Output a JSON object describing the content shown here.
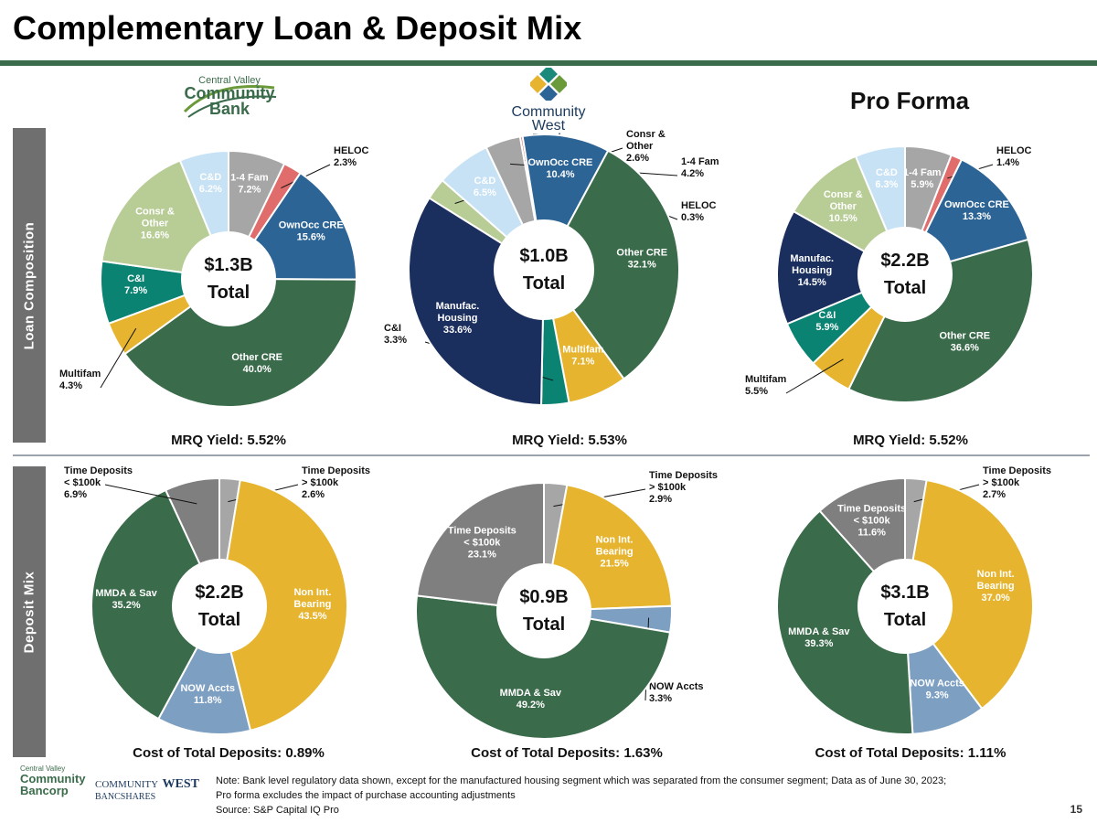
{
  "header": {
    "title": "Complementary Loan & Deposit Mix"
  },
  "side_labels": {
    "loan": "Loan Composition",
    "deposit": "Deposit Mix"
  },
  "pro_forma_label": "Pro Forma",
  "logos": {
    "cvcb": {
      "line1": "Central Valley",
      "line2": "Community",
      "line3": "Bank"
    },
    "cwb": {
      "line1": "Community",
      "line2": "West",
      "line3": "Bank"
    },
    "footer_cvcb": {
      "line1": "Central Valley",
      "line2": "Community",
      "line3": "Bancorp"
    },
    "footer_cw": {
      "line1": "COMMUNITY",
      "line2": "WEST",
      "line3": "BANCSHARES"
    }
  },
  "captions": {
    "loan": [
      "MRQ Yield: 5.52%",
      "MRQ Yield: 5.53%",
      "MRQ Yield: 5.52%"
    ],
    "deposit": [
      "Cost of Total Deposits: 0.89%",
      "Cost of Total Deposits: 1.63%",
      "Cost of Total Deposits: 1.11%"
    ]
  },
  "footer": {
    "note_line1": "Note: Bank level regulatory data shown, except for the manufactured housing segment which was separated from the consumer segment;  Data as of June 30, 2023;",
    "note_line2": "Pro forma excludes the impact of purchase accounting adjustments",
    "source": "Source: S&P Capital IQ Pro",
    "page": "15"
  },
  "colors": {
    "gray": "#a6a6a6",
    "salmon": "#e06c6c",
    "blue": "#2d6496",
    "green": "#3a6b4a",
    "gold": "#e6b42e",
    "teal": "#0b8373",
    "olive": "#b8cc96",
    "light_blue": "#c7e2f5",
    "navy": "#1b2f5e",
    "dark_gray": "#7f7f7f",
    "steel": "#7d9fc2",
    "rule": "#3a6b4a"
  },
  "chart_data": [
    {
      "type": "pie",
      "group": "loan",
      "bank": "Central Valley Community Bank",
      "center_amount": "$1.3B",
      "center_label": "Total",
      "slices": [
        {
          "label": "1-4 Fam",
          "value": 7.2,
          "color": "#a6a6a6",
          "display": "inside",
          "text_color": "#ffffff"
        },
        {
          "label": "HELOC",
          "value": 2.3,
          "color": "#e06c6c",
          "display": "callout",
          "text_color": "#111111"
        },
        {
          "label": "OwnOcc CRE",
          "value": 15.6,
          "color": "#2d6496",
          "display": "inside",
          "text_color": "#ffffff"
        },
        {
          "label": "Other CRE",
          "value": 40.0,
          "color": "#3a6b4a",
          "display": "inside",
          "text_color": "#ffffff"
        },
        {
          "label": "Multifam",
          "value": 4.3,
          "color": "#e6b42e",
          "display": "callout",
          "text_color": "#111111"
        },
        {
          "label": "C&I",
          "value": 7.9,
          "color": "#0b8373",
          "display": "inside",
          "text_color": "#ffffff"
        },
        {
          "label": "Consr & Other",
          "value": 16.6,
          "color": "#b8cc96",
          "display": "inside",
          "text_color": "#ffffff"
        },
        {
          "label": "C&D",
          "value": 6.2,
          "color": "#c7e2f5",
          "display": "inside",
          "text_color": "#ffffff"
        }
      ]
    },
    {
      "type": "pie",
      "group": "loan",
      "bank": "Community West Bank",
      "center_amount": "$1.0B",
      "center_label": "Total",
      "slices": [
        {
          "label": "Consr & Other",
          "value": 2.6,
          "color": "#b8cc96",
          "display": "callout",
          "text_color": "#111111"
        },
        {
          "label": "C&D",
          "value": 6.5,
          "color": "#c7e2f5",
          "display": "inside",
          "text_color": "#ffffff"
        },
        {
          "label": "1-4 Fam",
          "value": 4.2,
          "color": "#a6a6a6",
          "display": "callout",
          "text_color": "#111111"
        },
        {
          "label": "HELOC",
          "value": 0.3,
          "color": "#e06c6c",
          "display": "callout",
          "text_color": "#111111"
        },
        {
          "label": "OwnOcc CRE",
          "value": 10.4,
          "color": "#2d6496",
          "display": "inside",
          "text_color": "#ffffff"
        },
        {
          "label": "Other CRE",
          "value": 32.1,
          "color": "#3a6b4a",
          "display": "inside",
          "text_color": "#ffffff"
        },
        {
          "label": "Multifam",
          "value": 7.1,
          "color": "#e6b42e",
          "display": "inside",
          "text_color": "#ffffff"
        },
        {
          "label": "C&I",
          "value": 3.3,
          "color": "#0b8373",
          "display": "callout",
          "text_color": "#111111"
        },
        {
          "label": "Manufac. Housing",
          "value": 33.6,
          "color": "#1b2f5e",
          "display": "inside",
          "text_color": "#ffffff"
        }
      ]
    },
    {
      "type": "pie",
      "group": "loan",
      "bank": "Pro Forma",
      "center_amount": "$2.2B",
      "center_label": "Total",
      "slices": [
        {
          "label": "1-4 Fam",
          "value": 5.9,
          "color": "#a6a6a6",
          "display": "inside",
          "text_color": "#ffffff"
        },
        {
          "label": "HELOC",
          "value": 1.4,
          "color": "#e06c6c",
          "display": "callout",
          "text_color": "#111111"
        },
        {
          "label": "OwnOcc CRE",
          "value": 13.3,
          "color": "#2d6496",
          "display": "inside",
          "text_color": "#ffffff"
        },
        {
          "label": "Other CRE",
          "value": 36.6,
          "color": "#3a6b4a",
          "display": "inside",
          "text_color": "#ffffff"
        },
        {
          "label": "Multifam",
          "value": 5.5,
          "color": "#e6b42e",
          "display": "callout",
          "text_color": "#111111"
        },
        {
          "label": "C&I",
          "value": 5.9,
          "color": "#0b8373",
          "display": "inside",
          "text_color": "#ffffff"
        },
        {
          "label": "Manufac. Housing",
          "value": 14.5,
          "color": "#1b2f5e",
          "display": "inside",
          "text_color": "#ffffff"
        },
        {
          "label": "Consr & Other",
          "value": 10.5,
          "color": "#b8cc96",
          "display": "inside",
          "text_color": "#ffffff"
        },
        {
          "label": "C&D",
          "value": 6.3,
          "color": "#c7e2f5",
          "display": "inside",
          "text_color": "#ffffff"
        }
      ]
    },
    {
      "type": "pie",
      "group": "deposit",
      "bank": "Central Valley Community Bank",
      "center_amount": "$2.2B",
      "center_label": "Total",
      "slices": [
        {
          "label": "Time Deposits > $100k",
          "value": 2.6,
          "color": "#a6a6a6",
          "display": "callout",
          "text_color": "#111111"
        },
        {
          "label": "Non Int. Bearing",
          "value": 43.5,
          "color": "#e6b42e",
          "display": "inside",
          "text_color": "#ffffff"
        },
        {
          "label": "NOW Accts",
          "value": 11.8,
          "color": "#7d9fc2",
          "display": "inside",
          "text_color": "#ffffff"
        },
        {
          "label": "MMDA & Sav",
          "value": 35.2,
          "color": "#3a6b4a",
          "display": "inside",
          "text_color": "#ffffff"
        },
        {
          "label": "Time Deposits < $100k",
          "value": 6.9,
          "color": "#7f7f7f",
          "display": "callout",
          "text_color": "#111111"
        }
      ]
    },
    {
      "type": "pie",
      "group": "deposit",
      "bank": "Community West Bank",
      "center_amount": "$0.9B",
      "center_label": "Total",
      "slices": [
        {
          "label": "Time Deposits > $100k",
          "value": 2.9,
          "color": "#a6a6a6",
          "display": "callout",
          "text_color": "#111111"
        },
        {
          "label": "Non Int. Bearing",
          "value": 21.5,
          "color": "#e6b42e",
          "display": "inside",
          "text_color": "#ffffff"
        },
        {
          "label": "NOW Accts",
          "value": 3.3,
          "color": "#7d9fc2",
          "display": "callout",
          "text_color": "#111111"
        },
        {
          "label": "MMDA & Sav",
          "value": 49.2,
          "color": "#3a6b4a",
          "display": "inside",
          "text_color": "#ffffff"
        },
        {
          "label": "Time Deposits < $100k",
          "value": 23.1,
          "color": "#7f7f7f",
          "display": "inside",
          "text_color": "#ffffff"
        }
      ]
    },
    {
      "type": "pie",
      "group": "deposit",
      "bank": "Pro Forma",
      "center_amount": "$3.1B",
      "center_label": "Total",
      "slices": [
        {
          "label": "Time Deposits > $100k",
          "value": 2.7,
          "color": "#a6a6a6",
          "display": "callout",
          "text_color": "#111111"
        },
        {
          "label": "Non Int. Bearing",
          "value": 37.0,
          "color": "#e6b42e",
          "display": "inside",
          "text_color": "#ffffff"
        },
        {
          "label": "NOW Accts",
          "value": 9.3,
          "color": "#7d9fc2",
          "display": "inside",
          "text_color": "#ffffff"
        },
        {
          "label": "MMDA & Sav",
          "value": 39.3,
          "color": "#3a6b4a",
          "display": "inside",
          "text_color": "#ffffff"
        },
        {
          "label": "Time Deposits < $100k",
          "value": 11.6,
          "color": "#7f7f7f",
          "display": "inside",
          "text_color": "#ffffff"
        }
      ]
    }
  ]
}
